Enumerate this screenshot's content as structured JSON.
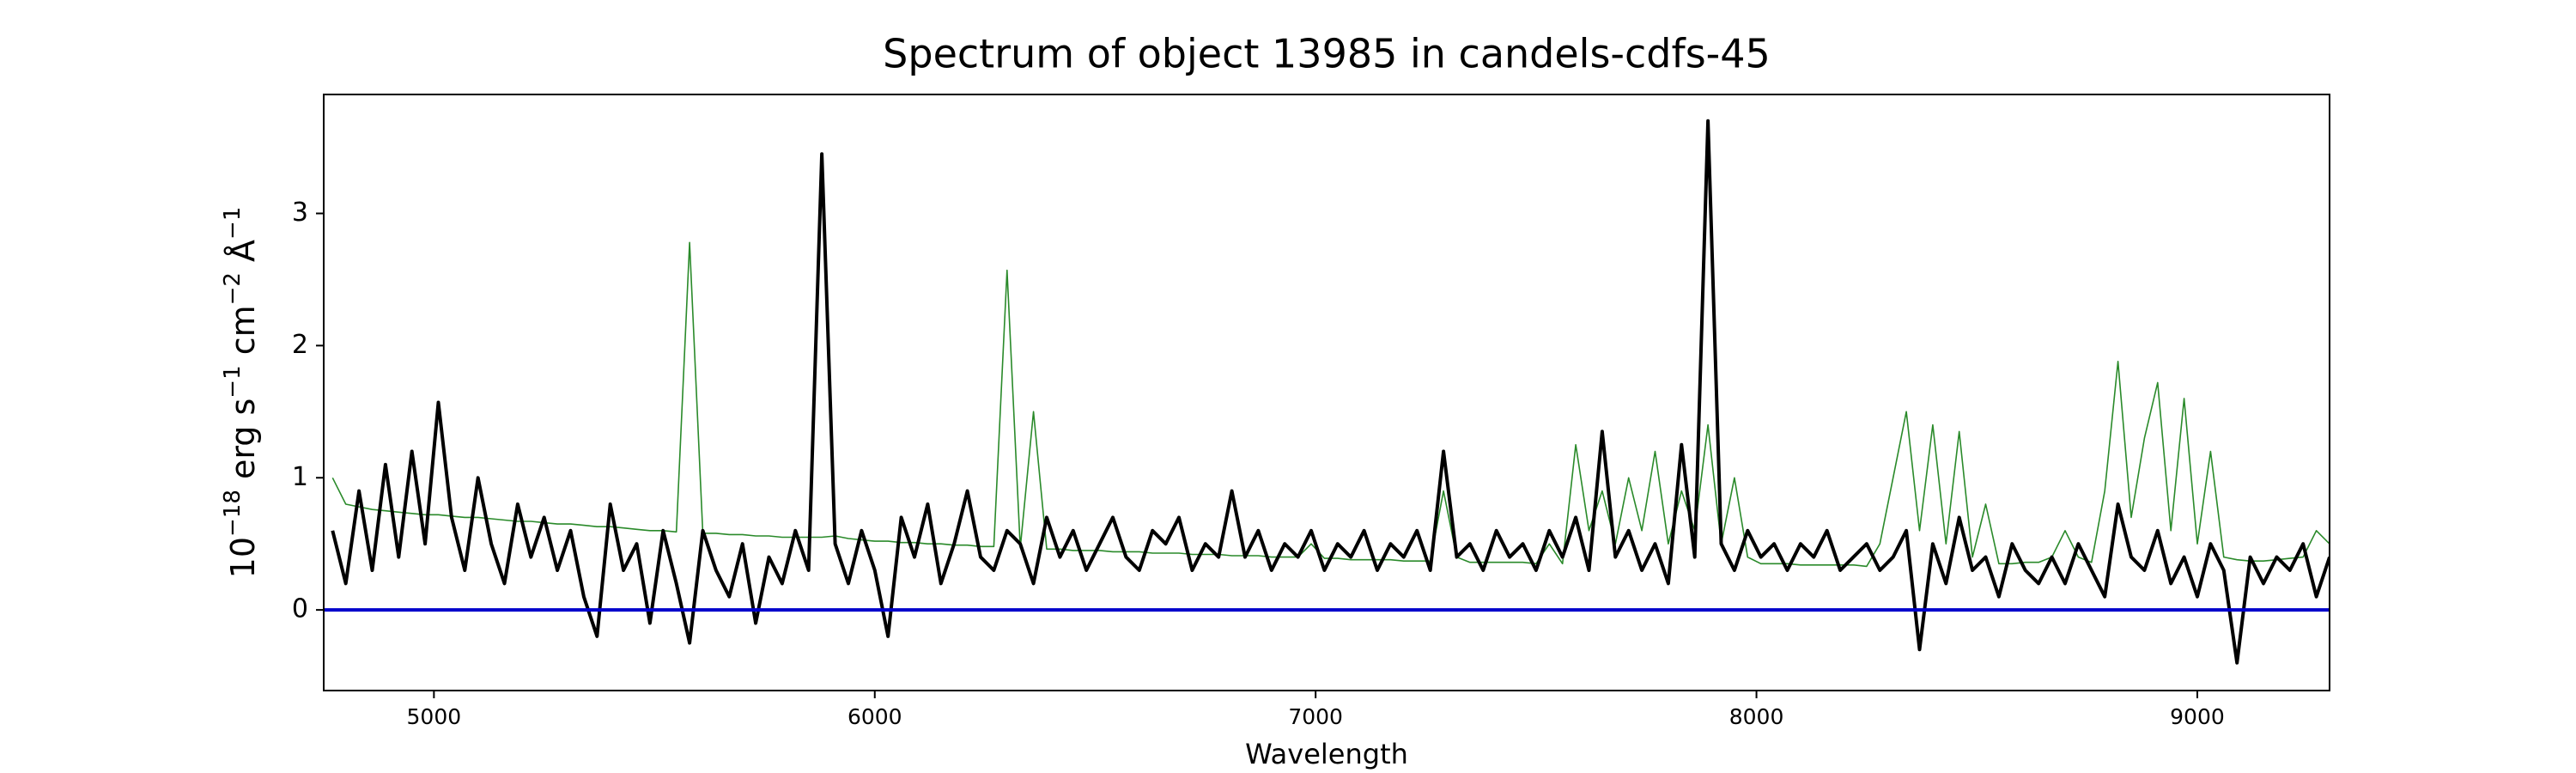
{
  "chart_data": {
    "type": "line",
    "title": "Spectrum of object 13985 in candels-cdfs-45",
    "xlabel": "Wavelength",
    "ylabel": [
      "10",
      "−18",
      " erg s",
      "−1",
      " cm",
      "−2",
      " Å",
      "−1"
    ],
    "xlim": [
      4750,
      9300
    ],
    "ylim": [
      -0.61,
      3.9
    ],
    "xticks": [
      5000,
      6000,
      7000,
      8000,
      9000
    ],
    "yticks": [
      0,
      1,
      2,
      3
    ],
    "hline": {
      "value": 0,
      "color": "#0000cc"
    },
    "x": [
      4770,
      4800,
      4830,
      4860,
      4890,
      4920,
      4950,
      4980,
      5010,
      5040,
      5070,
      5100,
      5130,
      5160,
      5190,
      5220,
      5250,
      5280,
      5310,
      5340,
      5370,
      5400,
      5430,
      5460,
      5490,
      5520,
      5550,
      5580,
      5610,
      5640,
      5670,
      5700,
      5730,
      5760,
      5790,
      5820,
      5850,
      5880,
      5910,
      5940,
      5970,
      6000,
      6030,
      6060,
      6090,
      6120,
      6150,
      6180,
      6210,
      6240,
      6270,
      6300,
      6330,
      6360,
      6390,
      6420,
      6450,
      6480,
      6510,
      6540,
      6570,
      6600,
      6630,
      6660,
      6690,
      6720,
      6750,
      6780,
      6810,
      6840,
      6870,
      6900,
      6930,
      6960,
      6990,
      7020,
      7050,
      7080,
      7110,
      7140,
      7170,
      7200,
      7230,
      7260,
      7290,
      7320,
      7350,
      7380,
      7410,
      7440,
      7470,
      7500,
      7530,
      7560,
      7590,
      7620,
      7650,
      7680,
      7710,
      7740,
      7770,
      7800,
      7830,
      7860,
      7890,
      7920,
      7950,
      7980,
      8010,
      8040,
      8070,
      8100,
      8130,
      8160,
      8190,
      8220,
      8250,
      8280,
      8310,
      8340,
      8370,
      8400,
      8430,
      8460,
      8490,
      8520,
      8550,
      8580,
      8610,
      8640,
      8670,
      8700,
      8730,
      8760,
      8790,
      8820,
      8850,
      8880,
      8910,
      8940,
      8970,
      9000,
      9030,
      9060,
      9090,
      9120,
      9150,
      9180,
      9210,
      9240,
      9270,
      9300
    ],
    "series": [
      {
        "color": "#2a8a2a",
        "width": 1.6,
        "values": [
          1.0,
          0.8,
          0.78,
          0.76,
          0.75,
          0.74,
          0.73,
          0.72,
          0.72,
          0.71,
          0.7,
          0.7,
          0.69,
          0.68,
          0.67,
          0.67,
          0.66,
          0.65,
          0.65,
          0.64,
          0.63,
          0.63,
          0.62,
          0.61,
          0.6,
          0.6,
          0.59,
          2.78,
          0.58,
          0.58,
          0.57,
          0.57,
          0.56,
          0.56,
          0.55,
          0.55,
          0.55,
          0.55,
          0.56,
          0.54,
          0.53,
          0.52,
          0.52,
          0.51,
          0.51,
          0.5,
          0.5,
          0.49,
          0.49,
          0.48,
          0.48,
          2.57,
          0.47,
          1.5,
          0.46,
          0.46,
          0.45,
          0.45,
          0.45,
          0.44,
          0.44,
          0.44,
          0.43,
          0.43,
          0.43,
          0.42,
          0.42,
          0.42,
          0.41,
          0.41,
          0.41,
          0.4,
          0.4,
          0.4,
          0.5,
          0.39,
          0.39,
          0.38,
          0.38,
          0.38,
          0.38,
          0.37,
          0.37,
          0.37,
          0.9,
          0.4,
          0.36,
          0.36,
          0.36,
          0.36,
          0.36,
          0.35,
          0.5,
          0.35,
          1.25,
          0.6,
          0.9,
          0.5,
          1.0,
          0.6,
          1.2,
          0.5,
          0.9,
          0.6,
          1.4,
          0.5,
          1.0,
          0.4,
          0.35,
          0.35,
          0.35,
          0.34,
          0.34,
          0.34,
          0.34,
          0.34,
          0.33,
          0.5,
          1.0,
          1.5,
          0.6,
          1.4,
          0.5,
          1.35,
          0.4,
          0.8,
          0.35,
          0.35,
          0.36,
          0.36,
          0.4,
          0.6,
          0.4,
          0.36,
          0.9,
          1.88,
          0.7,
          1.3,
          1.72,
          0.6,
          1.6,
          0.5,
          1.2,
          0.4,
          0.38,
          0.37,
          0.37,
          0.38,
          0.39,
          0.4,
          0.6,
          0.5
        ]
      },
      {
        "color": "#000000",
        "width": 4,
        "values": [
          0.6,
          0.2,
          0.9,
          0.3,
          1.1,
          0.4,
          1.2,
          0.5,
          1.57,
          0.7,
          0.3,
          1.0,
          0.5,
          0.2,
          0.8,
          0.4,
          0.7,
          0.3,
          0.6,
          0.1,
          -0.2,
          0.8,
          0.3,
          0.5,
          -0.1,
          0.6,
          0.2,
          -0.25,
          0.6,
          0.3,
          0.1,
          0.5,
          -0.1,
          0.4,
          0.2,
          0.6,
          0.3,
          3.45,
          0.5,
          0.2,
          0.6,
          0.3,
          -0.2,
          0.7,
          0.4,
          0.8,
          0.2,
          0.5,
          0.9,
          0.4,
          0.3,
          0.6,
          0.5,
          0.2,
          0.7,
          0.4,
          0.6,
          0.3,
          0.5,
          0.7,
          0.4,
          0.3,
          0.6,
          0.5,
          0.7,
          0.3,
          0.5,
          0.4,
          0.9,
          0.4,
          0.6,
          0.3,
          0.5,
          0.4,
          0.6,
          0.3,
          0.5,
          0.4,
          0.6,
          0.3,
          0.5,
          0.4,
          0.6,
          0.3,
          1.2,
          0.4,
          0.5,
          0.3,
          0.6,
          0.4,
          0.5,
          0.3,
          0.6,
          0.4,
          0.7,
          0.3,
          1.35,
          0.4,
          0.6,
          0.3,
          0.5,
          0.2,
          1.25,
          0.4,
          3.7,
          0.5,
          0.3,
          0.6,
          0.4,
          0.5,
          0.3,
          0.5,
          0.4,
          0.6,
          0.3,
          0.4,
          0.5,
          0.3,
          0.4,
          0.6,
          -0.3,
          0.5,
          0.2,
          0.7,
          0.3,
          0.4,
          0.1,
          0.5,
          0.3,
          0.2,
          0.4,
          0.2,
          0.5,
          0.3,
          0.1,
          0.8,
          0.4,
          0.3,
          0.6,
          0.2,
          0.4,
          0.1,
          0.5,
          0.3,
          -0.4,
          0.4,
          0.2,
          0.4,
          0.3,
          0.5,
          0.1,
          0.4
        ]
      }
    ]
  }
}
